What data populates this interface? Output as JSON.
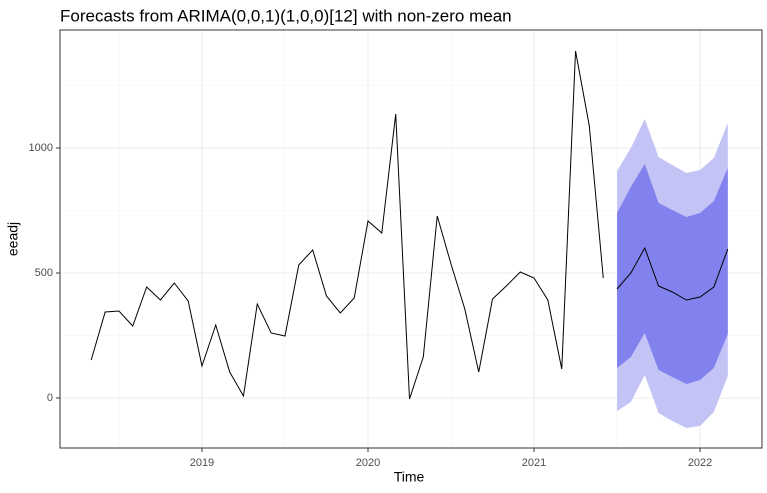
{
  "chart_data": {
    "type": "line",
    "title": "Forecasts from ARIMA(0,0,1)(1,0,0)[12] with non-zero mean",
    "xlabel": "Time",
    "ylabel": "eeadj",
    "xlim": [
      2018.145,
      2022.373
    ],
    "xticks": [
      2019,
      2020,
      2021,
      2022
    ],
    "ylim": [
      -200,
      1472
    ],
    "yticks": [
      0,
      500,
      1000
    ],
    "grid": true,
    "series": [
      {
        "color": "#000000",
        "x": [
          2018.333,
          2018.417,
          2018.5,
          2018.583,
          2018.667,
          2018.75,
          2018.833,
          2018.917,
          2019.0,
          2019.083,
          2019.167,
          2019.25,
          2019.333,
          2019.417,
          2019.5,
          2019.583,
          2019.667,
          2019.75,
          2019.833,
          2019.917,
          2020.0,
          2020.083,
          2020.167,
          2020.25,
          2020.333,
          2020.417,
          2020.5,
          2020.583,
          2020.667,
          2020.75,
          2020.833,
          2020.917,
          2021.0,
          2021.083,
          2021.167,
          2021.25,
          2021.333,
          2021.417
        ],
        "values": [
          152,
          344,
          348,
          288,
          444,
          392,
          460,
          388,
          128,
          292,
          104,
          8,
          376,
          260,
          248,
          532,
          592,
          408,
          340,
          400,
          708,
          660,
          1136,
          -4,
          164,
          728,
          536,
          356,
          104,
          396,
          448,
          504,
          480,
          392,
          116,
          1388,
          1088,
          480
        ]
      }
    ],
    "forecast": {
      "color": "#000000",
      "x": [
        2021.5,
        2021.583,
        2021.667,
        2021.75,
        2021.833,
        2021.917,
        2022.0,
        2022.083,
        2022.167
      ],
      "mean": [
        436,
        500,
        600,
        448,
        424,
        392,
        404,
        444,
        596
      ],
      "bands": [
        {
          "color": "#c3c3f6",
          "lower": [
            -52,
            -16,
            92,
            -60,
            -92,
            -120,
            -112,
            -56,
            88
          ],
          "upper": [
            908,
            1000,
            1116,
            964,
            932,
            900,
            912,
            960,
            1100
          ]
        },
        {
          "color": "#8282ee",
          "lower": [
            120,
            164,
            260,
            112,
            84,
            56,
            72,
            120,
            256
          ],
          "upper": [
            740,
            844,
            936,
            780,
            752,
            724,
            740,
            788,
            920
          ]
        }
      ]
    }
  }
}
